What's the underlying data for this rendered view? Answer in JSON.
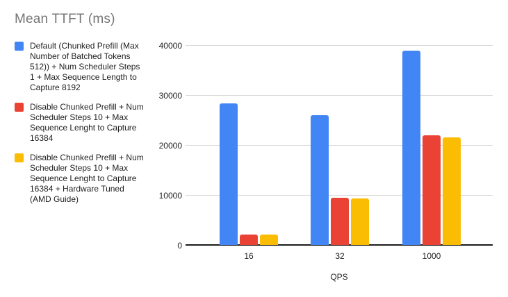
{
  "colors": {
    "series_blue": "#4285F4",
    "series_red": "#EA4335",
    "series_yellow": "#FBBC04",
    "title_text": "#757575",
    "legend_text": "#212121",
    "axis_text": "#222222",
    "gridline": "#d9d9d9",
    "axis_line": "#1a1a1a",
    "background": "#ffffff"
  },
  "chart_data": {
    "type": "bar",
    "title": "Mean TTFT (ms)",
    "xlabel": "QPS",
    "ylabel": "",
    "categories": [
      "16",
      "32",
      "1000"
    ],
    "series": [
      {
        "name": "Default (Chunked Prefill (Max Number of Batched Tokens 512)) + Num Scheduler Steps 1 + Max Sequence Length to Capture 8192",
        "color": "#4285F4",
        "values": [
          28300,
          26000,
          38900
        ]
      },
      {
        "name": "Disable Chunked Prefill + Num Scheduler Steps 10 + Max Sequence Lenght to Capture 16384",
        "color": "#EA4335",
        "values": [
          2100,
          9500,
          21900
        ]
      },
      {
        "name": "Disable Chunked Prefill + Num Scheduler Steps 10 + Max Sequence Lenght to Capture 16384 + Hardware Tuned (AMD Guide)",
        "color": "#FBBC04",
        "values": [
          2100,
          9300,
          21500
        ]
      }
    ],
    "ylim": [
      0,
      40000
    ],
    "yticks": [
      0,
      10000,
      20000,
      30000,
      40000
    ],
    "grid": true,
    "legend_position": "left"
  }
}
